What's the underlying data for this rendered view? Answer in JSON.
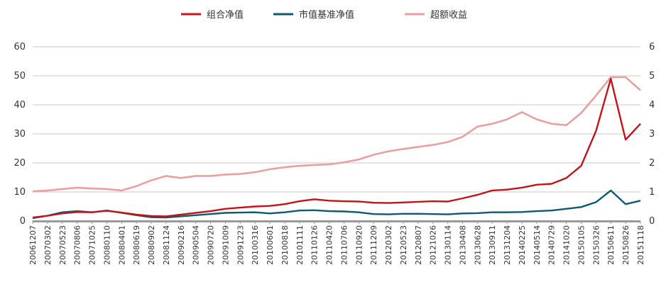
{
  "chart_data": {
    "type": "line",
    "title": "",
    "xlabel": "",
    "ylabel": "",
    "legend_position": "top",
    "grid": true,
    "ylim": [
      0,
      60
    ],
    "y2lim": [
      0,
      6
    ],
    "yticks": [
      "0",
      "10",
      "20",
      "30",
      "40",
      "50",
      "60"
    ],
    "y2ticks": [
      "0",
      "1",
      "2",
      "3",
      "4",
      "5",
      "6"
    ],
    "x_tick_labels": [
      "20061207",
      "20070302",
      "20070523",
      "20070806",
      "20071025",
      "20080110",
      "20080401",
      "20080619",
      "20080902",
      "20081124",
      "20090216",
      "20090504",
      "20090720",
      "20091009",
      "20091223",
      "20100316",
      "20100601",
      "20100818",
      "20101111",
      "20110126",
      "20110420",
      "20110706",
      "20110920",
      "20111209",
      "20120302",
      "20120523",
      "20120807",
      "20121026",
      "20130114",
      "20130408",
      "20130628",
      "20130911",
      "20131204",
      "20140225",
      "20140514",
      "20140729",
      "20141020",
      "20150105",
      "20150326",
      "20150611",
      "20150826",
      "20151118"
    ],
    "series": [
      {
        "name": "组合净值",
        "axis": "left",
        "color": "#c0151b",
        "values": [
          1.2,
          1.8,
          2.6,
          3.1,
          3.0,
          3.5,
          2.9,
          2.2,
          1.7,
          1.6,
          2.2,
          2.8,
          3.4,
          4.2,
          4.6,
          5.0,
          5.2,
          5.8,
          6.8,
          7.5,
          7.0,
          6.8,
          6.7,
          6.3,
          6.2,
          6.4,
          6.6,
          6.8,
          6.7,
          7.8,
          9.0,
          10.5,
          10.8,
          11.5,
          12.5,
          12.8,
          14.8,
          19.0,
          31.0,
          49.0,
          28.0,
          33.5
        ]
      },
      {
        "name": "市值基准净值",
        "axis": "left",
        "color": "#0f5a6e",
        "values": [
          1.0,
          1.8,
          3.0,
          3.4,
          3.0,
          3.6,
          2.8,
          2.0,
          1.3,
          1.2,
          1.6,
          2.0,
          2.4,
          2.8,
          2.9,
          3.0,
          2.6,
          3.0,
          3.6,
          3.7,
          3.4,
          3.3,
          3.0,
          2.4,
          2.3,
          2.5,
          2.5,
          2.4,
          2.3,
          2.6,
          2.7,
          3.0,
          3.0,
          3.1,
          3.4,
          3.6,
          4.2,
          4.8,
          6.5,
          10.5,
          5.8,
          7.0
        ]
      },
      {
        "name": "超额收益",
        "axis": "right",
        "color": "#e8a0a0",
        "values": [
          1.02,
          1.05,
          1.1,
          1.15,
          1.12,
          1.1,
          1.05,
          1.2,
          1.4,
          1.55,
          1.48,
          1.55,
          1.55,
          1.6,
          1.62,
          1.68,
          1.78,
          1.85,
          1.9,
          1.93,
          1.95,
          2.02,
          2.12,
          2.28,
          2.4,
          2.48,
          2.55,
          2.62,
          2.72,
          2.9,
          3.25,
          3.35,
          3.5,
          3.75,
          3.5,
          3.35,
          3.3,
          3.72,
          4.32,
          4.95,
          4.95,
          4.5
        ]
      }
    ]
  }
}
